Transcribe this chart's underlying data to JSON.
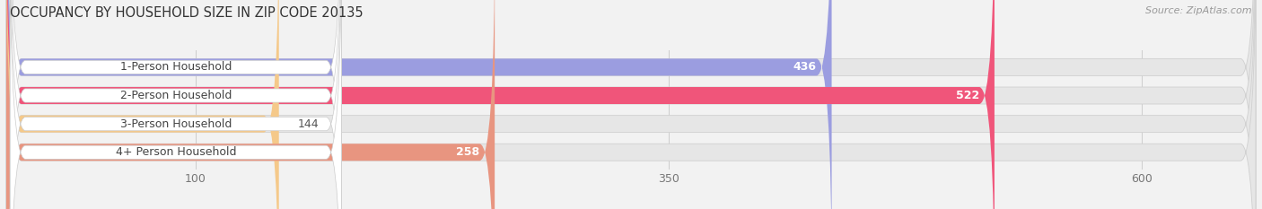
{
  "title": "OCCUPANCY BY HOUSEHOLD SIZE IN ZIP CODE 20135",
  "source": "Source: ZipAtlas.com",
  "categories": [
    "1-Person Household",
    "2-Person Household",
    "3-Person Household",
    "4+ Person Household"
  ],
  "values": [
    436,
    522,
    144,
    258
  ],
  "bar_colors": [
    "#9b9de0",
    "#f0557a",
    "#f5c98a",
    "#e89580"
  ],
  "background_color": "#f2f2f2",
  "bar_bg_color": "#e2e2e2",
  "xlim_data": [
    0,
    660
  ],
  "data_max": 600,
  "xticks": [
    100,
    350,
    600
  ],
  "bar_height": 0.6,
  "label_fontsize": 9.0,
  "value_fontsize": 9.0,
  "title_fontsize": 10.5
}
